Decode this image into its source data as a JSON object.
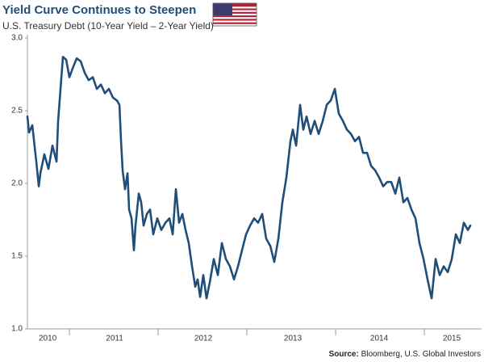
{
  "chart_data": {
    "type": "line",
    "title": "Yield Curve Continues to Steepen",
    "subtitle": "U.S. Treasury Debt (10-Year Yield – 2-Year Yield)",
    "source_label": "Source:",
    "source": "Bloomberg, U.S. Global Investors",
    "color": "#1f4e7a",
    "xlim": [
      2010.527,
      2015.645
    ],
    "ylim": [
      1.0,
      3.0
    ],
    "yticks": [
      {
        "value": 1.0,
        "label": "1.0"
      },
      1.5,
      {
        "value": 2.0,
        "label": "2.0"
      },
      2.5,
      {
        "value": 3.0,
        "label": "3.0"
      }
    ],
    "xticks": [
      {
        "value": 2010.755,
        "label": "2010"
      },
      {
        "value": 2011.509,
        "label": "2011"
      },
      {
        "value": 2012.509,
        "label": "2012"
      },
      {
        "value": 2013.518,
        "label": "2013"
      },
      {
        "value": 2014.491,
        "label": "2014"
      },
      {
        "value": 2015.309,
        "label": "2015"
      }
    ],
    "x_dividers": [
      2011,
      2012,
      2013,
      2014,
      2015
    ],
    "x": [
      2010.527,
      2010.545,
      2010.582,
      2010.627,
      2010.655,
      2010.673,
      2010.718,
      2010.764,
      2010.809,
      2010.855,
      2010.873,
      2010.9,
      2010.927,
      2010.964,
      2011.0,
      2011.036,
      2011.082,
      2011.127,
      2011.173,
      2011.218,
      2011.264,
      2011.309,
      2011.355,
      2011.4,
      2011.445,
      2011.491,
      2011.536,
      2011.564,
      2011.582,
      2011.6,
      2011.627,
      2011.655,
      2011.673,
      2011.7,
      2011.727,
      2011.745,
      2011.782,
      2011.809,
      2011.836,
      2011.873,
      2011.909,
      2011.945,
      2011.991,
      2012.036,
      2012.082,
      2012.127,
      2012.164,
      2012.2,
      2012.236,
      2012.273,
      2012.309,
      2012.345,
      2012.382,
      2012.418,
      2012.445,
      2012.473,
      2012.509,
      2012.545,
      2012.582,
      2012.627,
      2012.673,
      2012.718,
      2012.764,
      2012.809,
      2012.855,
      2012.9,
      2012.945,
      2012.991,
      2013.036,
      2013.082,
      2013.127,
      2013.173,
      2013.218,
      2013.264,
      2013.309,
      2013.355,
      2013.4,
      2013.445,
      2013.491,
      2013.518,
      2013.555,
      2013.6,
      2013.636,
      2013.673,
      2013.718,
      2013.764,
      2013.809,
      2013.855,
      2013.9,
      2013.945,
      2013.991,
      2014.036,
      2014.082,
      2014.127,
      2014.173,
      2014.218,
      2014.264,
      2014.309,
      2014.355,
      2014.4,
      2014.445,
      2014.491,
      2014.536,
      2014.582,
      2014.627,
      2014.673,
      2014.718,
      2014.764,
      2014.809,
      2014.855,
      2014.9,
      2014.945,
      2014.991,
      2015.036,
      2015.082,
      2015.127,
      2015.173,
      2015.218,
      2015.264,
      2015.309,
      2015.355,
      2015.4,
      2015.445,
      2015.491,
      2015.518
    ],
    "values": [
      2.46,
      2.35,
      2.4,
      2.15,
      1.98,
      2.07,
      2.2,
      2.1,
      2.26,
      2.15,
      2.43,
      2.65,
      2.87,
      2.85,
      2.73,
      2.79,
      2.86,
      2.84,
      2.76,
      2.71,
      2.73,
      2.65,
      2.68,
      2.62,
      2.65,
      2.59,
      2.57,
      2.54,
      2.29,
      2.09,
      1.96,
      2.07,
      1.82,
      1.76,
      1.54,
      1.71,
      1.93,
      1.87,
      1.71,
      1.79,
      1.82,
      1.65,
      1.76,
      1.68,
      1.73,
      1.76,
      1.65,
      1.96,
      1.73,
      1.79,
      1.68,
      1.59,
      1.43,
      1.29,
      1.34,
      1.22,
      1.37,
      1.21,
      1.32,
      1.48,
      1.37,
      1.59,
      1.48,
      1.43,
      1.34,
      1.43,
      1.54,
      1.65,
      1.71,
      1.76,
      1.73,
      1.79,
      1.62,
      1.57,
      1.46,
      1.62,
      1.87,
      2.04,
      2.29,
      2.37,
      2.26,
      2.54,
      2.37,
      2.46,
      2.34,
      2.43,
      2.34,
      2.43,
      2.54,
      2.57,
      2.65,
      2.48,
      2.43,
      2.37,
      2.34,
      2.29,
      2.32,
      2.21,
      2.21,
      2.12,
      2.09,
      2.04,
      1.98,
      2.01,
      2.01,
      1.93,
      2.04,
      1.87,
      1.9,
      1.82,
      1.76,
      1.59,
      1.48,
      1.34,
      1.21,
      1.48,
      1.37,
      1.43,
      1.39,
      1.48,
      1.65,
      1.59,
      1.73,
      1.68,
      1.71
    ]
  }
}
